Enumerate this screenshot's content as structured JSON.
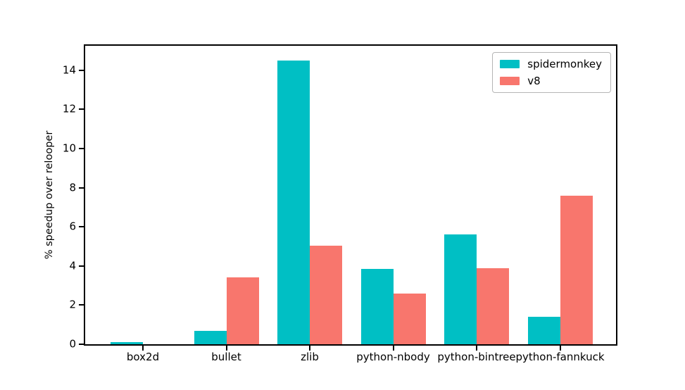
{
  "chart_data": {
    "type": "bar",
    "title": "",
    "xlabel": "",
    "ylabel": "% speedup over relooper",
    "categories": [
      "box2d",
      "bullet",
      "zlib",
      "python-nbody",
      "python-bintree",
      "python-fannkuck"
    ],
    "series": [
      {
        "name": "spidermonkey",
        "color": "#00BFC4",
        "values": [
          0.1,
          0.7,
          14.5,
          3.85,
          5.6,
          1.4
        ]
      },
      {
        "name": "v8",
        "color": "#F8766D",
        "values": [
          0.0,
          3.4,
          5.05,
          2.6,
          3.9,
          7.6
        ]
      }
    ],
    "ylim": [
      0,
      15.2
    ],
    "yticks": [
      0,
      2,
      4,
      6,
      8,
      10,
      12,
      14
    ],
    "grid": false,
    "legend_position": "upper right",
    "background_color": "#ffffff",
    "axis_color": "#000000"
  }
}
